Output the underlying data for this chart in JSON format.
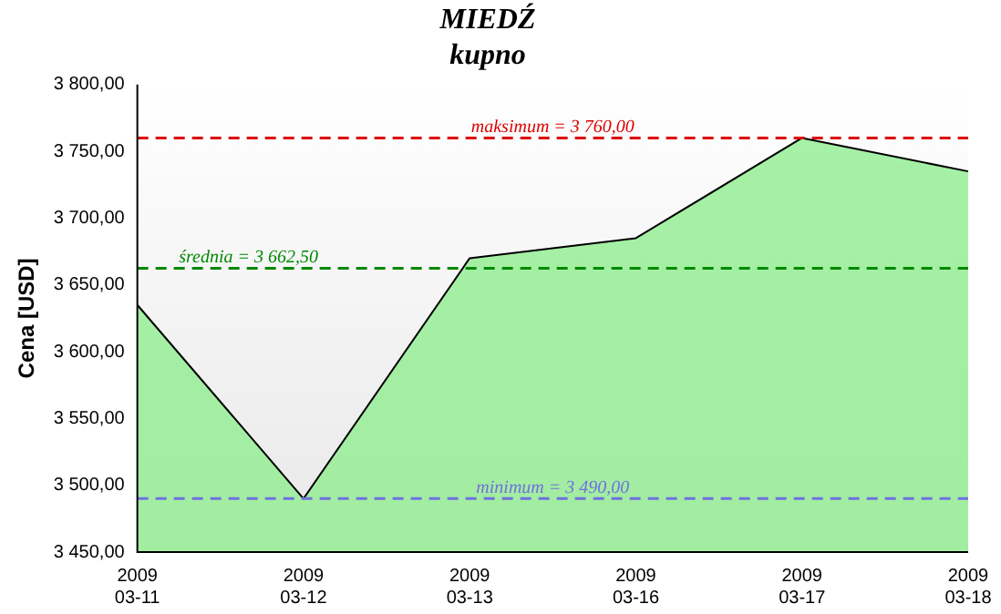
{
  "chart_data": {
    "type": "area",
    "title": "MIEDŹ",
    "subtitle": "kupno",
    "ylabel": "Cena [USD]",
    "categories": [
      "2009\n03-11",
      "2009\n03-12",
      "2009\n03-13",
      "2009\n03-16",
      "2009\n03-17",
      "2009\n03-18"
    ],
    "series": [
      {
        "color": "#90ee90",
        "values": [
          3635,
          3490,
          3670,
          3685,
          3760,
          3735
        ]
      }
    ],
    "ylim": [
      3450,
      3800
    ],
    "yticks": [
      {
        "value": 3450,
        "label": "3 450,00"
      },
      {
        "value": 3500,
        "label": "3 500,00"
      },
      {
        "value": 3550,
        "label": "3 550,00"
      },
      {
        "value": 3600,
        "label": "3 600,00"
      },
      {
        "value": 3650,
        "label": "3 650,00"
      },
      {
        "value": 3700,
        "label": "3 700,00"
      },
      {
        "value": 3750,
        "label": "3 750,00"
      },
      {
        "value": 3800,
        "label": "3 800,00"
      }
    ],
    "ref_lines": [
      {
        "axis": "y",
        "value": 3760,
        "label": "maksimum = 3 760,00",
        "color": "#dd0000",
        "line_style": "dashed"
      },
      {
        "axis": "y",
        "value": 3662.5,
        "label": "średnia = 3 662,50",
        "color": "#008800",
        "line_style": "dashed"
      },
      {
        "axis": "y",
        "value": 3490,
        "label": "minimum = 3 490,00",
        "color": "#7070e0",
        "line_style": "dashed"
      }
    ],
    "grid": false,
    "legend": false
  }
}
